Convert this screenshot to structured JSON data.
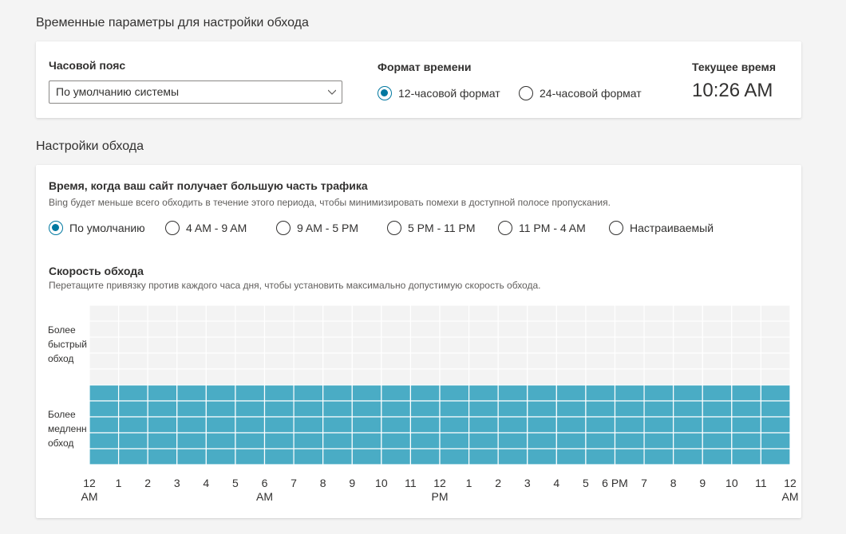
{
  "time_section": {
    "title": "Временные параметры для настройки обхода",
    "timezone_label": "Часовой пояс",
    "timezone_value": "По умолчанию системы",
    "format_label": "Формат времени",
    "format_options": [
      "12-часовой формат",
      "24-часовой формат"
    ],
    "format_selected": 0,
    "current_time_label": "Текущее время",
    "current_time_value": "10:26 AM"
  },
  "crawl_section": {
    "title": "Настройки обхода",
    "traffic_heading": "Время, когда ваш сайт получает большую часть трафика",
    "traffic_description": "Bing будет меньше всего обходить в течение этого периода, чтобы минимизировать помехи в доступной полосе пропускания.",
    "traffic_options": [
      "По умолчанию",
      "4 AM - 9 AM",
      "9 AM - 5 PM",
      "5 PM - 11 PM",
      "11 PM - 4 AM",
      "Настраиваемый"
    ],
    "traffic_selected": 0,
    "rate_heading": "Скорость обхода",
    "rate_description": "Перетащите привязку против каждого часа дня, чтобы установить максимально допустимую скорость обхода.",
    "faster_label": [
      "Более",
      "быстрый",
      "обход"
    ],
    "slower_label": [
      "Более",
      "медленн",
      "обход"
    ]
  },
  "chart_data": {
    "type": "bar",
    "x_ticks": [
      "12",
      "1",
      "2",
      "3",
      "4",
      "5",
      "6",
      "7",
      "8",
      "9",
      "10",
      "11",
      "12",
      "1",
      "2",
      "3",
      "4",
      "5",
      "6 PM",
      "7",
      "8",
      "9",
      "10",
      "11",
      "12"
    ],
    "x_tick_sublabels": {
      "0": "AM",
      "6": "AM",
      "12": "PM",
      "24": "AM"
    },
    "levels_total": 10,
    "hourly_levels": [
      5,
      5,
      5,
      5,
      5,
      5,
      5,
      5,
      5,
      5,
      5,
      5,
      5,
      5,
      5,
      5,
      5,
      5,
      5,
      5,
      5,
      5,
      5,
      5
    ],
    "colors": {
      "filled": "#4aacc5",
      "empty": "#f3f3f3",
      "grid_line": "#ffffff"
    }
  },
  "colors": {
    "accent": "#0078a0"
  }
}
